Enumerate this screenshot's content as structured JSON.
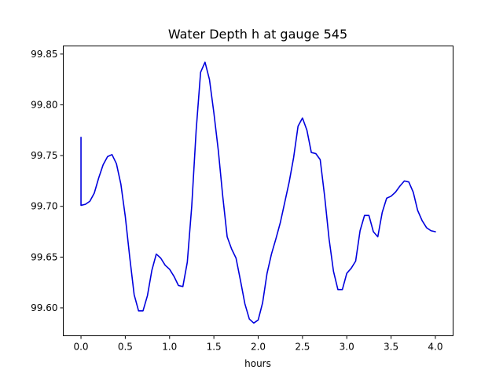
{
  "chart_data": {
    "type": "line",
    "title": "Water Depth h at gauge 545",
    "xlabel": "hours",
    "ylabel": "",
    "xlim": [
      -0.2,
      4.2
    ],
    "ylim": [
      99.5725,
      99.858
    ],
    "x_ticks": [
      0.0,
      0.5,
      1.0,
      1.5,
      2.0,
      2.5,
      3.0,
      3.5,
      4.0
    ],
    "x_tick_labels": [
      "0.0",
      "0.5",
      "1.0",
      "1.5",
      "2.0",
      "2.5",
      "3.0",
      "3.5",
      "4.0"
    ],
    "y_ticks": [
      99.6,
      99.65,
      99.7,
      99.75,
      99.8,
      99.85
    ],
    "y_tick_labels": [
      "99.60",
      "99.65",
      "99.70",
      "99.75",
      "99.80",
      "99.85"
    ],
    "grid": false,
    "legend": "none",
    "series": [
      {
        "color": "#0000dd",
        "x": [
          0.0,
          0.0,
          0.05,
          0.1,
          0.15,
          0.2,
          0.25,
          0.3,
          0.35,
          0.4,
          0.45,
          0.5,
          0.55,
          0.6,
          0.65,
          0.7,
          0.75,
          0.8,
          0.85,
          0.9,
          0.95,
          1.0,
          1.05,
          1.1,
          1.15,
          1.2,
          1.25,
          1.3,
          1.35,
          1.4,
          1.45,
          1.5,
          1.55,
          1.6,
          1.65,
          1.7,
          1.75,
          1.8,
          1.85,
          1.9,
          1.95,
          2.0,
          2.05,
          2.1,
          2.15,
          2.2,
          2.25,
          2.3,
          2.35,
          2.4,
          2.45,
          2.5,
          2.55,
          2.6,
          2.65,
          2.7,
          2.75,
          2.8,
          2.85,
          2.9,
          2.95,
          3.0,
          3.05,
          3.1,
          3.15,
          3.2,
          3.25,
          3.3,
          3.35,
          3.4,
          3.45,
          3.5,
          3.55,
          3.6,
          3.65,
          3.7,
          3.75,
          3.8,
          3.85,
          3.9,
          3.95,
          4.0
        ],
        "y": [
          99.768,
          99.701,
          99.702,
          99.705,
          99.713,
          99.728,
          99.741,
          99.749,
          99.751,
          99.742,
          99.722,
          99.69,
          99.65,
          99.613,
          99.597,
          99.597,
          99.612,
          99.637,
          99.653,
          99.649,
          99.642,
          99.638,
          99.631,
          99.622,
          99.621,
          99.645,
          99.7,
          99.775,
          99.832,
          99.842,
          99.825,
          99.792,
          99.755,
          99.71,
          99.67,
          99.658,
          99.649,
          99.627,
          99.604,
          99.589,
          99.585,
          99.588,
          99.605,
          99.634,
          99.653,
          99.668,
          99.684,
          99.704,
          99.724,
          99.748,
          99.779,
          99.787,
          99.775,
          99.753,
          99.752,
          99.746,
          99.71,
          99.668,
          99.636,
          99.618,
          99.618,
          99.634,
          99.639,
          99.646,
          99.676,
          99.691,
          99.691,
          99.675,
          99.67,
          99.694,
          99.708,
          99.71,
          99.714,
          99.72,
          99.725,
          99.724,
          99.714,
          99.696,
          99.686,
          99.679,
          99.676,
          99.675
        ]
      }
    ]
  }
}
